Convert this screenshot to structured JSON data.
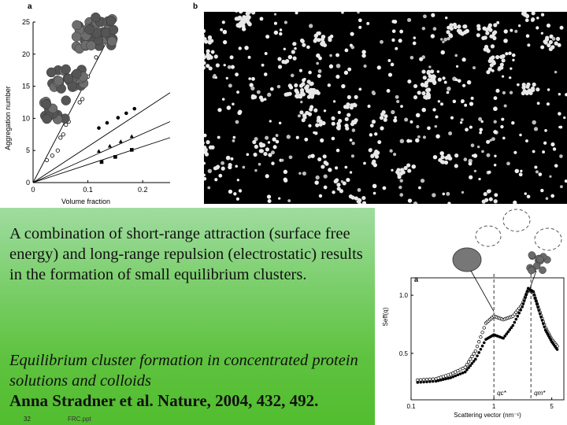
{
  "panel_labels": {
    "top_left": "a",
    "top_right": "b",
    "bottom_right": "a"
  },
  "statement": "A combination of short-range attraction (surface free energy) and long-range repulsion (electrostatic) results in the formation of small equilibrium clusters.",
  "citation": {
    "title": "Equilibrium cluster formation in concentrated protein solutions and colloids",
    "reference": "Anna Stradner et al. Nature, 2004, 432, 492."
  },
  "footer": {
    "slide_number": "32",
    "file": "FRC.ppt"
  },
  "chart_data": [
    {
      "type": "scatter",
      "title": "",
      "xlabel": "Volume fraction",
      "ylabel": "Aggregation number",
      "xlim": [
        0,
        0.25
      ],
      "ylim": [
        0,
        25
      ],
      "x_ticks": [
        "0",
        "0.1",
        "0.2"
      ],
      "y_ticks": [
        "0",
        "5",
        "10",
        "15",
        "20",
        "25"
      ],
      "grid": false,
      "series": [
        {
          "marker": "open-circle",
          "x": [
            0.025,
            0.035,
            0.045,
            0.05,
            0.055,
            0.06,
            0.065,
            0.085,
            0.09,
            0.1,
            0.115
          ],
          "y": [
            3.5,
            4.2,
            5.0,
            7.0,
            7.5,
            9.0,
            9.5,
            12.5,
            13.0,
            16.5,
            19.5
          ]
        },
        {
          "marker": "filled-circle",
          "x": [
            0.12,
            0.135,
            0.155,
            0.17,
            0.185
          ],
          "y": [
            8.5,
            9.3,
            10.1,
            10.8,
            11.5
          ]
        },
        {
          "marker": "filled-triangle",
          "x": [
            0.12,
            0.14,
            0.16,
            0.18
          ],
          "y": [
            4.9,
            5.7,
            6.4,
            7.2
          ]
        },
        {
          "marker": "filled-square",
          "x": [
            0.125,
            0.15,
            0.18
          ],
          "y": [
            3.2,
            4.0,
            5.1
          ]
        }
      ],
      "fit_lines": [
        {
          "from": [
            0,
            0
          ],
          "to": [
            0.15,
            24.5
          ]
        },
        {
          "from": [
            0,
            0
          ],
          "to": [
            0.25,
            14
          ]
        },
        {
          "from": [
            0,
            0
          ],
          "to": [
            0.25,
            9.5
          ]
        },
        {
          "from": [
            0,
            0
          ],
          "to": [
            0.25,
            7
          ]
        }
      ]
    },
    {
      "type": "scatter",
      "title": "",
      "xlabel": "Scattering vector (nm⁻¹)",
      "ylabel": "Seff(q)",
      "xscale": "log",
      "xlim": [
        0.1,
        7
      ],
      "ylim": [
        0.1,
        1.15
      ],
      "x_ticks": [
        "0.1",
        "1",
        "5"
      ],
      "y_ticks": [
        "0.5",
        "1.0"
      ],
      "grid": false,
      "annotations": [
        "qc*",
        "qm*"
      ],
      "series": [
        {
          "marker": "open-circle",
          "x": [
            0.12,
            0.2,
            0.3,
            0.45,
            0.6,
            0.8,
            1.0,
            1.3,
            1.7,
            2.2,
            2.6,
            3.0,
            3.5,
            4.2,
            5.0,
            6.0
          ],
          "y": [
            0.27,
            0.28,
            0.32,
            0.38,
            0.52,
            0.76,
            0.82,
            0.79,
            0.82,
            0.92,
            1.05,
            1.02,
            0.88,
            0.72,
            0.62,
            0.55
          ]
        },
        {
          "marker": "filled-circle",
          "x": [
            0.12,
            0.2,
            0.3,
            0.45,
            0.6,
            0.8,
            1.0,
            1.3,
            1.7,
            2.2,
            2.6,
            3.0,
            3.5,
            4.2,
            5.0,
            6.0
          ],
          "y": [
            0.25,
            0.26,
            0.29,
            0.34,
            0.45,
            0.62,
            0.66,
            0.63,
            0.74,
            0.9,
            1.06,
            1.03,
            0.87,
            0.7,
            0.6,
            0.52
          ]
        }
      ]
    }
  ]
}
